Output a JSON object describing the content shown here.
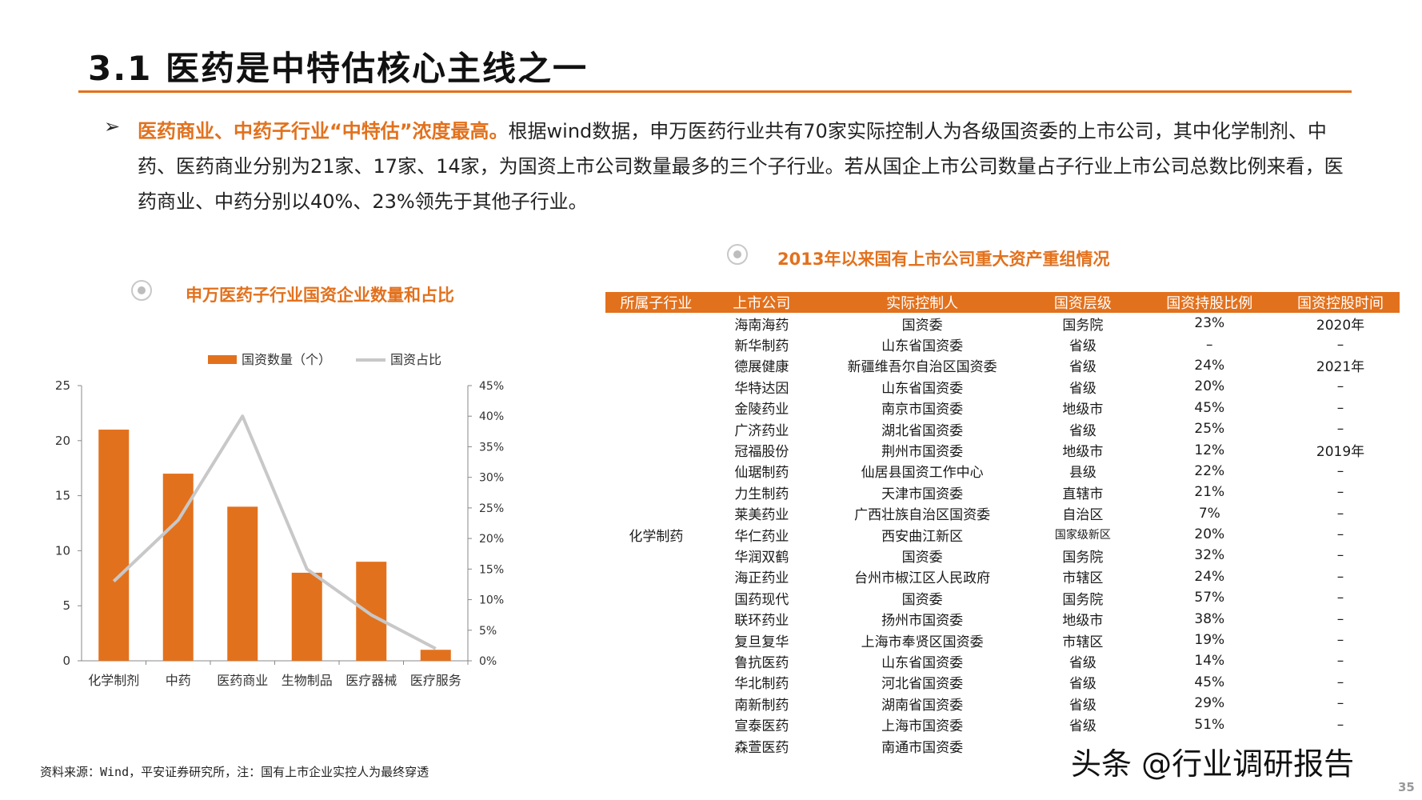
{
  "page_title": "3.1 医药是中特估核心主线之一",
  "bullet_mark": "➢",
  "paragraph": {
    "highlight": "医药商业、中药子行业“中特估”浓度最高。",
    "body": "根据wind数据，申万医药行业共有70家实际控制人为各级国资委的上市公司，其中化学制剂、中药、医药商业分别为21家、17家、14家，为国资上市公司数量最多的三个子行业。若从国企上市公司数量占子行业上市公司总数比例来看，医药商业、中药分别以40%、23%领先于其他子行业。"
  },
  "chart_section_title": "申万医药子行业国资企业数量和占比",
  "table_section_title": "2013年以来国有上市公司重大资产重组情况",
  "colors": {
    "accent": "#e2711d",
    "line": "#c8c8c8",
    "radio": "#bdbdbd"
  },
  "chart_data": {
    "type": "bar",
    "categories": [
      "化学制剂",
      "中药",
      "医药商业",
      "生物制品",
      "医疗器械",
      "医疗服务"
    ],
    "series": [
      {
        "name": "国资数量（个）",
        "type": "bar",
        "axis": "left",
        "values": [
          21,
          17,
          14,
          8,
          9,
          1
        ],
        "color": "#e2711d"
      },
      {
        "name": "国资占比",
        "type": "line",
        "axis": "right",
        "values": [
          0.13,
          0.23,
          0.4,
          0.15,
          0.075,
          0.02
        ],
        "color": "#c8c8c8"
      }
    ],
    "y_left": {
      "min": 0,
      "max": 25,
      "ticks": [
        0,
        5,
        10,
        15,
        20,
        25
      ],
      "tick_labels": [
        "0",
        "5",
        "10",
        "15",
        "20",
        "25"
      ]
    },
    "y_right": {
      "min": 0,
      "max": 0.45,
      "ticks": [
        0,
        0.05,
        0.1,
        0.15,
        0.2,
        0.25,
        0.3,
        0.35,
        0.4,
        0.45
      ],
      "tick_labels": [
        "0%",
        "5%",
        "10%",
        "15%",
        "20%",
        "25%",
        "30%",
        "35%",
        "40%",
        "45%"
      ]
    },
    "legend_position": "top",
    "grid": false,
    "title": "",
    "xlabel": "",
    "ylabel": ""
  },
  "source_note": "资料来源：Wind，平安证券研究所，注：国有上市企业实控人为最终穿透",
  "table": {
    "headers": [
      "所属子行业",
      "上市公司",
      "实际控制人",
      "国资层级",
      "国资持股比例",
      "国资控股时间"
    ],
    "industry": "化学制药",
    "rows": [
      [
        "海南海药",
        "国资委",
        "国务院",
        "23%",
        "2020年"
      ],
      [
        "新华制药",
        "山东省国资委",
        "省级",
        "–",
        "–"
      ],
      [
        "德展健康",
        "新疆维吾尔自治区国资委",
        "省级",
        "24%",
        "2021年"
      ],
      [
        "华特达因",
        "山东省国资委",
        "省级",
        "20%",
        "–"
      ],
      [
        "金陵药业",
        "南京市国资委",
        "地级市",
        "45%",
        "–"
      ],
      [
        "广济药业",
        "湖北省国资委",
        "省级",
        "25%",
        "–"
      ],
      [
        "冠福股份",
        "荆州市国资委",
        "地级市",
        "12%",
        "2019年"
      ],
      [
        "仙琚制药",
        "仙居县国资工作中心",
        "县级",
        "22%",
        "–"
      ],
      [
        "力生制药",
        "天津市国资委",
        "直辖市",
        "21%",
        "–"
      ],
      [
        "莱美药业",
        "广西壮族自治区国资委",
        "自治区",
        "7%",
        "–"
      ],
      [
        "华仁药业",
        "西安曲江新区",
        "国家级新区",
        "20%",
        "–"
      ],
      [
        "华润双鹤",
        "国资委",
        "国务院",
        "32%",
        "–"
      ],
      [
        "海正药业",
        "台州市椒江区人民政府",
        "市辖区",
        "24%",
        "–"
      ],
      [
        "国药现代",
        "国资委",
        "国务院",
        "57%",
        "–"
      ],
      [
        "联环药业",
        "扬州市国资委",
        "地级市",
        "38%",
        "–"
      ],
      [
        "复旦复华",
        "上海市奉贤区国资委",
        "市辖区",
        "19%",
        "–"
      ],
      [
        "鲁抗医药",
        "山东省国资委",
        "省级",
        "14%",
        "–"
      ],
      [
        "华北制药",
        "河北省国资委",
        "省级",
        "45%",
        "–"
      ],
      [
        "南新制药",
        "湖南省国资委",
        "省级",
        "29%",
        "–"
      ],
      [
        "宣泰医药",
        "上海市国资委",
        "省级",
        "51%",
        "–"
      ],
      [
        "森萱医药",
        "南通市国资委",
        "",
        "",
        ""
      ]
    ]
  },
  "watermark": "头条 @行业调研报告",
  "page_number": "35"
}
